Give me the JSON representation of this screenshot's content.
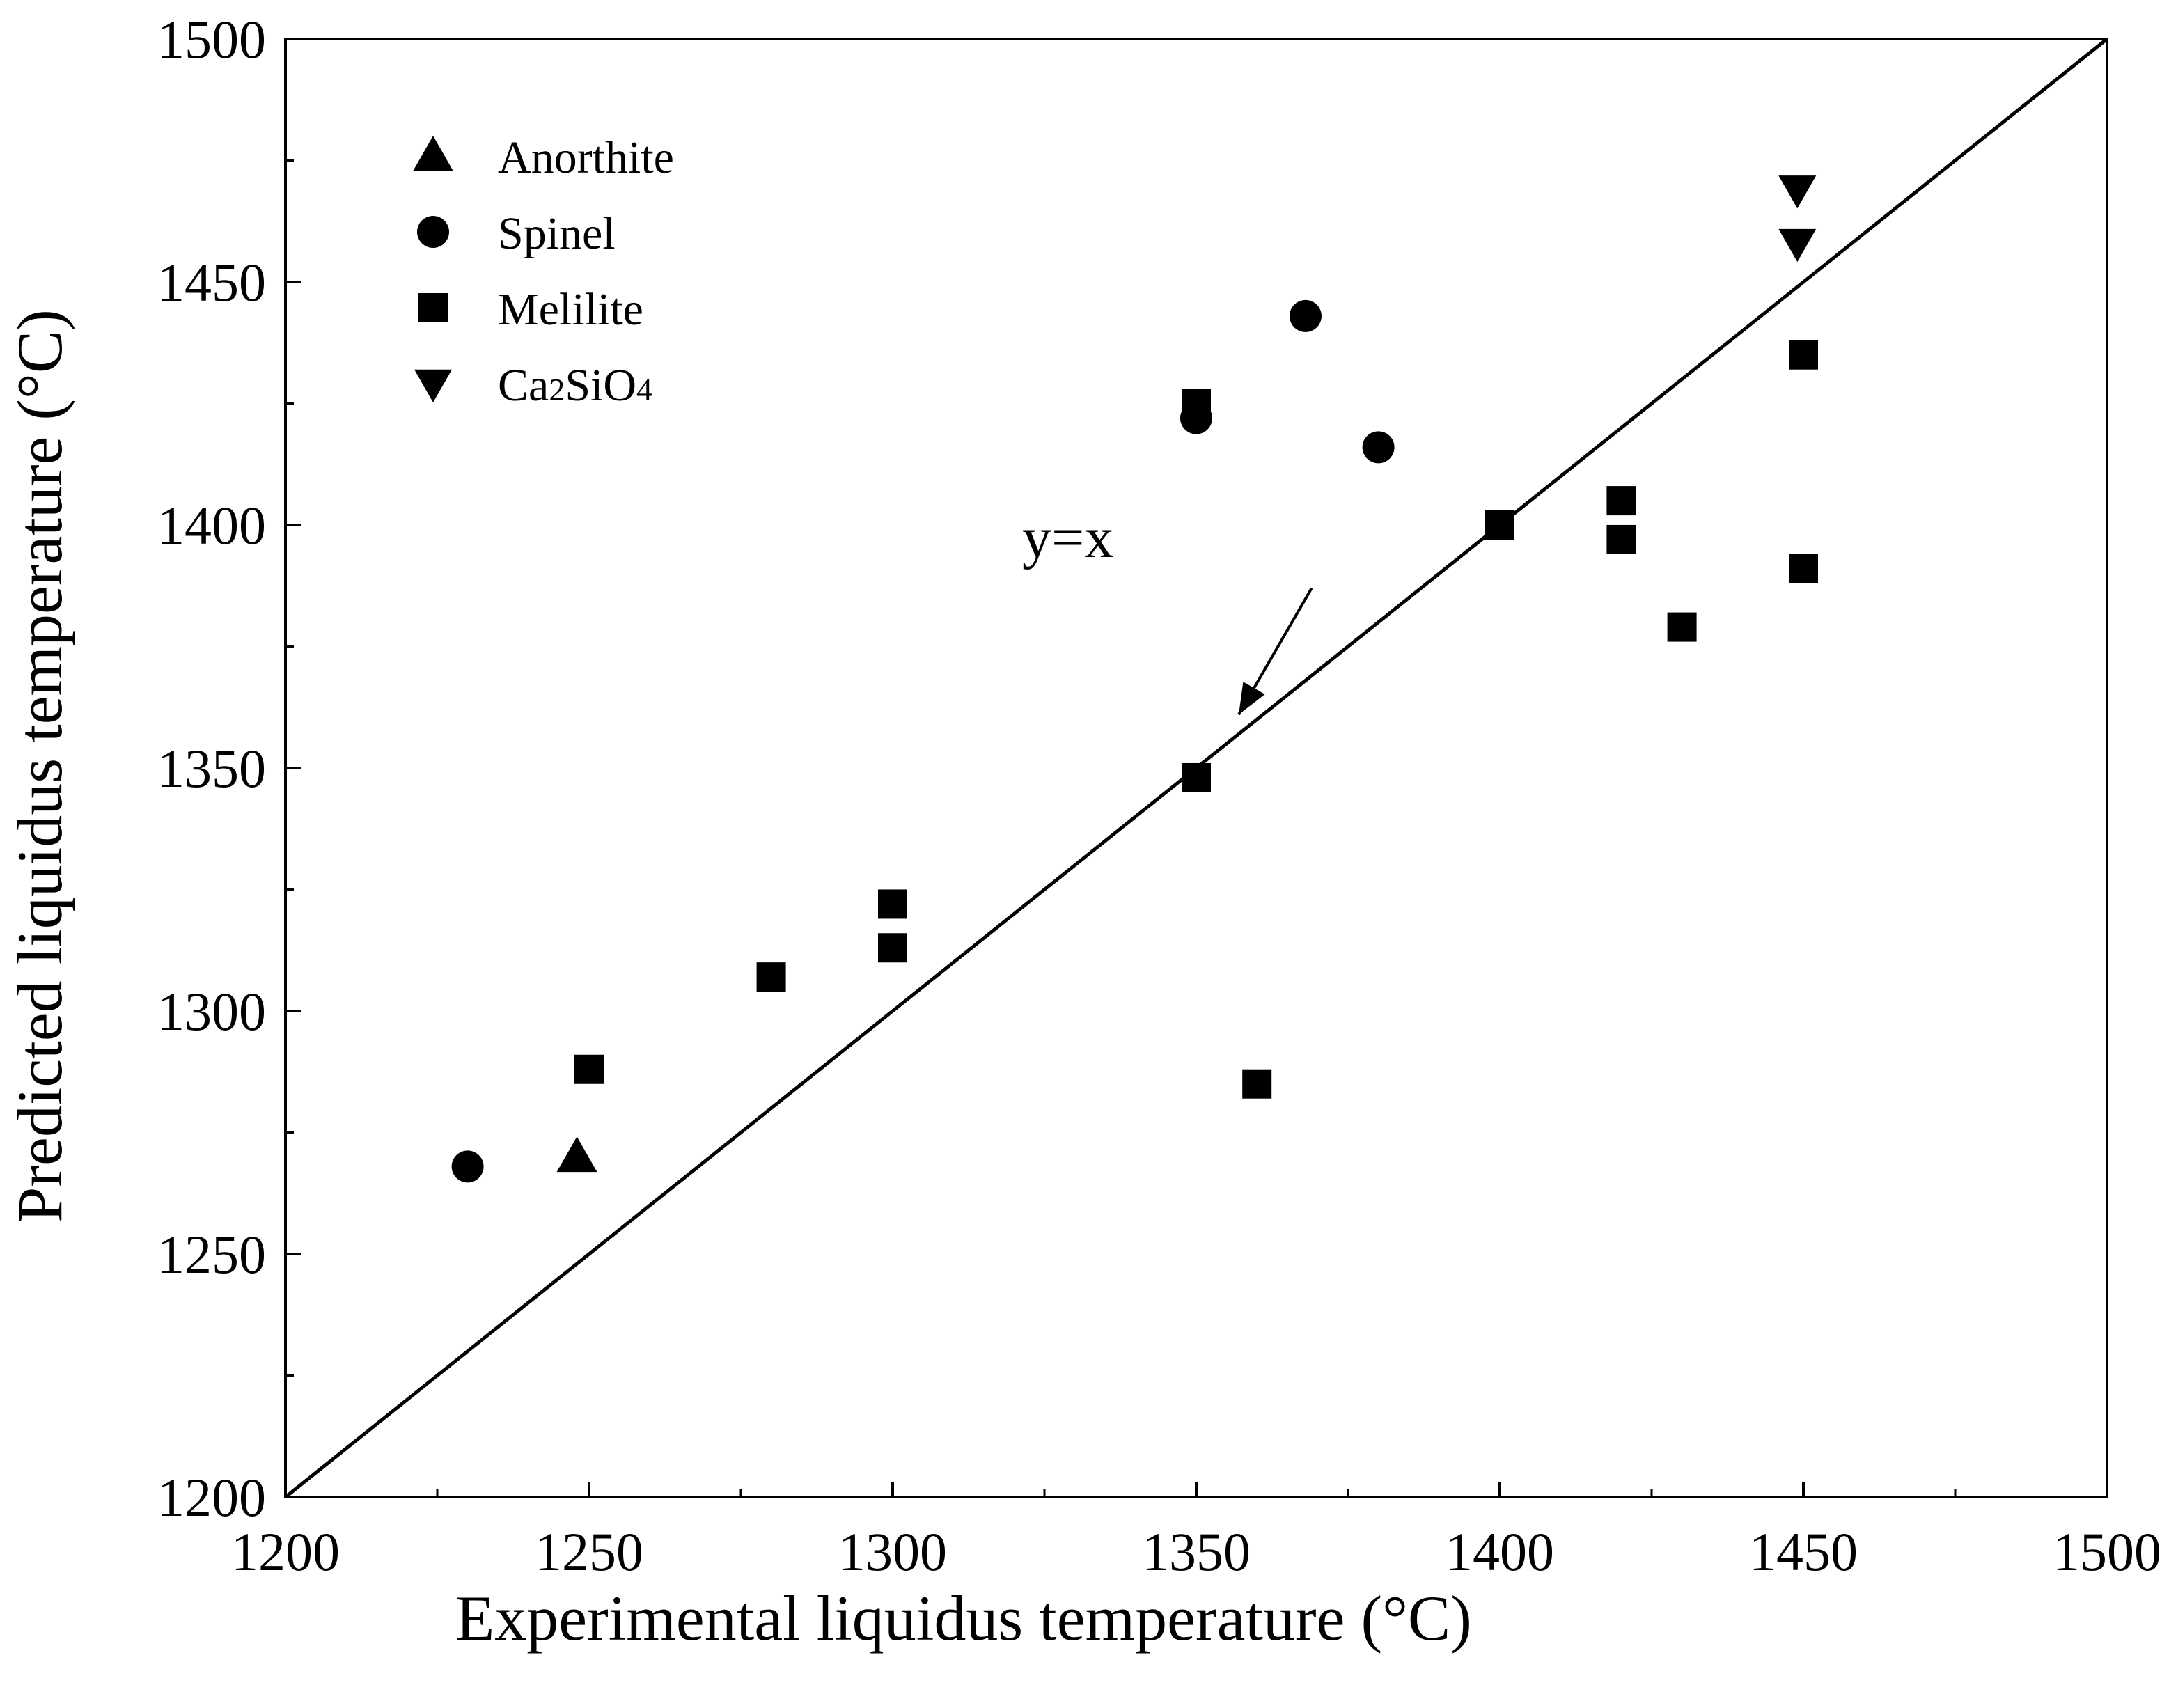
{
  "chart_data": {
    "type": "scatter",
    "title": "",
    "xlabel": "Experimental liquidus temperature (°C)",
    "ylabel": "Predicted liquidus temperature (°C)",
    "xlim": [
      1200,
      1500
    ],
    "ylim": [
      1200,
      1500
    ],
    "xticks": [
      1200,
      1250,
      1300,
      1350,
      1400,
      1450,
      1500
    ],
    "yticks": [
      1200,
      1250,
      1300,
      1350,
      1400,
      1450,
      1500
    ],
    "xtick_labels": [
      "1200",
      "1250",
      "1300",
      "1350",
      "1400",
      "1450",
      "1500"
    ],
    "ytick_labels": [
      "1200",
      "1250",
      "1300",
      "1350",
      "1400",
      "1450",
      "1500"
    ],
    "grid": false,
    "legend_position": "top-left",
    "series": [
      {
        "name": "Anorthite",
        "marker": "triangle-up",
        "points": [
          [
            1248,
            1270
          ]
        ]
      },
      {
        "name": "Spinel",
        "marker": "circle",
        "points": [
          [
            1230,
            1268
          ],
          [
            1350,
            1422
          ],
          [
            1368,
            1443
          ],
          [
            1380,
            1416
          ]
        ]
      },
      {
        "name": "Melilite",
        "marker": "square",
        "points": [
          [
            1250,
            1288
          ],
          [
            1280,
            1307
          ],
          [
            1300,
            1322
          ],
          [
            1300,
            1313
          ],
          [
            1350,
            1425
          ],
          [
            1350,
            1348
          ],
          [
            1360,
            1285
          ],
          [
            1400,
            1400
          ],
          [
            1420,
            1405
          ],
          [
            1420,
            1397
          ],
          [
            1430,
            1379
          ],
          [
            1450,
            1435
          ],
          [
            1450,
            1391
          ]
        ]
      },
      {
        "name": "Ca2SiO4",
        "marker": "triangle-down",
        "points": [
          [
            1449,
            1469
          ],
          [
            1449,
            1458
          ]
        ]
      }
    ],
    "reference_line": {
      "label": "y=x",
      "from": [
        1200,
        1200
      ],
      "to": [
        1500,
        1500
      ]
    },
    "annotation": {
      "text": "y=x",
      "arrow_from": [
        1369,
        1387
      ],
      "arrow_to": [
        1357,
        1361
      ]
    }
  }
}
